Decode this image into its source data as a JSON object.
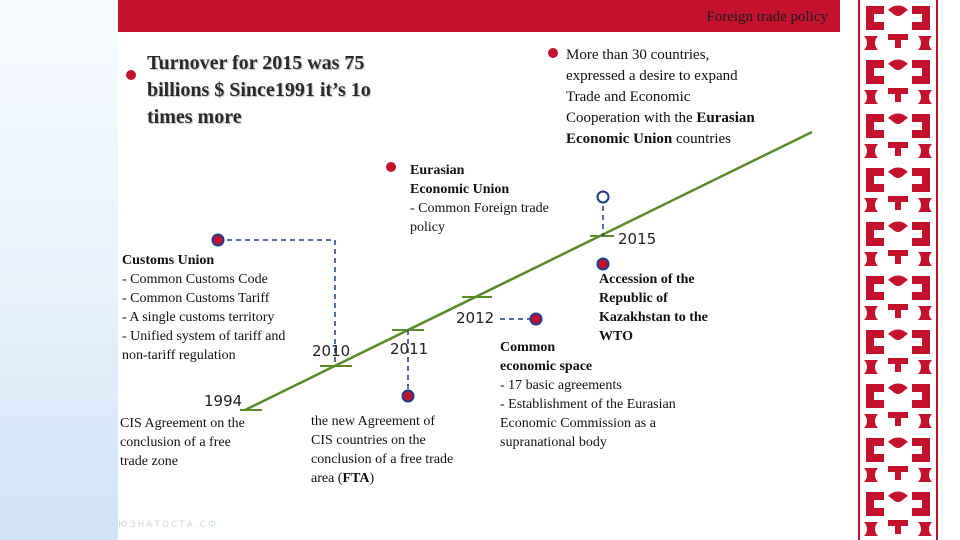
{
  "header": {
    "title": "Foreign  trade policy"
  },
  "turnover": {
    "text_line1": "Turnover for 2015 was 75",
    "text_line2": "billions $ Since1991 it’s  1o",
    "text_line3": "times more"
  },
  "countries": {
    "line1": "More than 30 countries,",
    "line2": "expressed a desire to expand",
    "line3": "Trade and Economic",
    "line4_prefix": "Cooperation with the ",
    "line4_bold": "Eurasian",
    "line5_bold": "Economic Union",
    "line5_suffix": " countries"
  },
  "eeu": {
    "title_line1": "Eurasian",
    "title_line2": "Economic Union",
    "item_line1": "- Common Foreign trade",
    "item_line2": "policy"
  },
  "customs": {
    "title": "Customs Union",
    "items": [
      "- Common Customs Code",
      "- Common Customs Tariff",
      "- A single customs territory",
      "- Unified system of tariff and",
      "non-tariff regulation"
    ]
  },
  "cis": {
    "line1": "CIS Agreement on the",
    "line2": "conclusion of a free",
    "line3": "trade zone"
  },
  "fta": {
    "line1": "the new Agreement of",
    "line2": "CIS countries on the",
    "line3": "conclusion of a free trade",
    "line4_prefix": "area (",
    "line4_bold": "FTA",
    "line4_suffix": ")"
  },
  "wto": {
    "line1": "Accession of the",
    "line2": "Republic of",
    "line3": "Kazakhstan to the",
    "line4": "WTO"
  },
  "ces": {
    "title_line1": "Common",
    "title_line2": "economic space",
    "items": [
      "- 17 basic agreements",
      "- Establishment of the Eurasian",
      "Economic Commission as a",
      "supranational body"
    ]
  },
  "years": {
    "y1994": "1994",
    "y2010": "2010",
    "y2011": "2011",
    "y2012": "2012",
    "y2015": "2015"
  },
  "watermark": "ЮЗНАТОСТА.СФ",
  "colors": {
    "accent": "#c4122e",
    "timeline": "#5a8a2a",
    "connector": "#1f3c88"
  }
}
